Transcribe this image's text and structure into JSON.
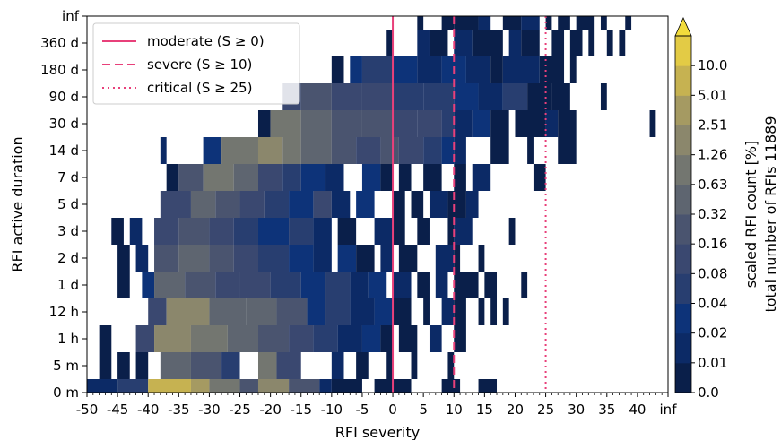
{
  "chart_data": {
    "type": "heatmap",
    "xlabel": "RFI severity",
    "ylabel": "RFI active duration",
    "x_ticks": [
      "-50",
      "-45",
      "-40",
      "-35",
      "-30",
      "-25",
      "-20",
      "-15",
      "-10",
      "-5",
      "0",
      "5",
      "10",
      "15",
      "20",
      "25",
      "30",
      "35",
      "40",
      "inf"
    ],
    "y_ticks": [
      "0 m",
      "5 m",
      "1 h",
      "12 h",
      "1 d",
      "2 d",
      "3 d",
      "5 d",
      "7 d",
      "14 d",
      "30 d",
      "90 d",
      "180 d",
      "360 d",
      "inf"
    ],
    "x_range": [
      -50,
      45
    ],
    "legend": {
      "placement": "top-left",
      "entries": [
        {
          "label": "moderate (S ≥ 0)",
          "x": 0,
          "style": "solid"
        },
        {
          "label": "severe (S ≥ 10)",
          "x": 10,
          "style": "dashed"
        },
        {
          "label": "critical (S ≥ 25)",
          "x": 25,
          "style": "dotted"
        }
      ]
    },
    "line_color": "#e8407a",
    "colorbar": {
      "label_lines": [
        "scaled RFI count [%]",
        "total number of RFIs 11889"
      ],
      "ticks": [
        "0.0",
        "0.01",
        "0.02",
        "0.04",
        "0.08",
        "0.16",
        "0.32",
        "0.63",
        "1.26",
        "2.51",
        "5.01",
        "10.0"
      ],
      "colors": [
        "#0a1f4a",
        "#0c2a66",
        "#0d3379",
        "#283e70",
        "#3a4870",
        "#4a546f",
        "#5e6570",
        "#737670",
        "#8b876c",
        "#a59a62",
        "#c6b251",
        "#e3cb45"
      ],
      "extend_color": "#f2dc3c"
    },
    "rows": [
      {
        "y": "0 m",
        "cells": [
          [
            -50,
            -45,
            1
          ],
          [
            -45,
            -40,
            3
          ],
          [
            -40,
            -33,
            10
          ],
          [
            -33,
            -30,
            9
          ],
          [
            -30,
            -25,
            7
          ],
          [
            -25,
            -22,
            5
          ],
          [
            -22,
            -17,
            8
          ],
          [
            -17,
            -12,
            5
          ],
          [
            -12,
            -10,
            1
          ],
          [
            -10,
            -5,
            0
          ],
          [
            -3,
            0,
            0
          ],
          [
            0,
            3,
            0
          ],
          [
            8,
            11,
            0
          ],
          [
            14,
            17,
            0
          ]
        ]
      },
      {
        "y": "5 m",
        "cells": [
          [
            -48,
            -46,
            0
          ],
          [
            -45,
            -43,
            0
          ],
          [
            -42,
            -40,
            0
          ],
          [
            -38,
            -33,
            6
          ],
          [
            -33,
            -28,
            5
          ],
          [
            -28,
            -25,
            3
          ],
          [
            -22,
            -19,
            7
          ],
          [
            -19,
            -15,
            4
          ],
          [
            -10,
            -8,
            1
          ],
          [
            -6,
            -4,
            0
          ],
          [
            -1,
            0,
            0
          ],
          [
            3,
            4,
            0
          ],
          [
            9,
            10,
            0
          ]
        ]
      },
      {
        "y": "1 h",
        "cells": [
          [
            -48,
            -46,
            0
          ],
          [
            -42,
            -39,
            4
          ],
          [
            -39,
            -33,
            8
          ],
          [
            -33,
            -27,
            7
          ],
          [
            -27,
            -22,
            6
          ],
          [
            -22,
            -17,
            5
          ],
          [
            -17,
            -13,
            4
          ],
          [
            -13,
            -9,
            3
          ],
          [
            -9,
            -5,
            1
          ],
          [
            -5,
            -2,
            2
          ],
          [
            -2,
            0,
            0
          ],
          [
            1,
            4,
            0
          ],
          [
            6,
            8,
            1
          ],
          [
            10,
            12,
            0
          ]
        ]
      },
      {
        "y": "12 h",
        "cells": [
          [
            -40,
            -37,
            4
          ],
          [
            -37,
            -30,
            8
          ],
          [
            -30,
            -24,
            6
          ],
          [
            -24,
            -19,
            6
          ],
          [
            -19,
            -14,
            5
          ],
          [
            -14,
            -11,
            2
          ],
          [
            -11,
            -7,
            3
          ],
          [
            -7,
            -3,
            1
          ],
          [
            -3,
            0,
            2
          ],
          [
            0,
            3,
            0
          ],
          [
            5,
            6,
            0
          ],
          [
            8,
            10,
            1
          ],
          [
            10,
            12,
            0
          ],
          [
            14,
            15,
            0
          ],
          [
            16,
            17,
            0
          ],
          [
            18,
            19,
            0
          ]
        ]
      },
      {
        "y": "1 d",
        "cells": [
          [
            -45,
            -43,
            0
          ],
          [
            -41,
            -39,
            2
          ],
          [
            -39,
            -34,
            6
          ],
          [
            -34,
            -29,
            5
          ],
          [
            -29,
            -25,
            4
          ],
          [
            -25,
            -20,
            4
          ],
          [
            -20,
            -15,
            3
          ],
          [
            -15,
            -11,
            2
          ],
          [
            -11,
            -7,
            3
          ],
          [
            -7,
            -4,
            1
          ],
          [
            -4,
            -1,
            2
          ],
          [
            0,
            3,
            1
          ],
          [
            4,
            6,
            0
          ],
          [
            7,
            9,
            1
          ],
          [
            10,
            14,
            0
          ],
          [
            15,
            17,
            0
          ],
          [
            21,
            22,
            0
          ]
        ]
      },
      {
        "y": "2 d",
        "cells": [
          [
            -45,
            -43,
            0
          ],
          [
            -42,
            -40,
            1
          ],
          [
            -39,
            -35,
            5
          ],
          [
            -35,
            -30,
            6
          ],
          [
            -30,
            -26,
            5
          ],
          [
            -26,
            -22,
            4
          ],
          [
            -22,
            -17,
            3
          ],
          [
            -17,
            -13,
            2
          ],
          [
            -13,
            -10,
            1
          ],
          [
            -9,
            -6,
            2
          ],
          [
            -6,
            -3,
            0
          ],
          [
            -2,
            0,
            1
          ],
          [
            1,
            4,
            0
          ],
          [
            7,
            10,
            1
          ],
          [
            10,
            11,
            0
          ],
          [
            14,
            15,
            0
          ]
        ]
      },
      {
        "y": "3 d",
        "cells": [
          [
            -46,
            -44,
            0
          ],
          [
            -43,
            -41,
            1
          ],
          [
            -39,
            -35,
            4
          ],
          [
            -35,
            -30,
            5
          ],
          [
            -30,
            -26,
            4
          ],
          [
            -26,
            -22,
            3
          ],
          [
            -22,
            -17,
            2
          ],
          [
            -17,
            -13,
            3
          ],
          [
            -13,
            -10,
            1
          ],
          [
            -9,
            -6,
            0
          ],
          [
            -3,
            0,
            1
          ],
          [
            0,
            2,
            0
          ],
          [
            4,
            6,
            0
          ],
          [
            9,
            10,
            0
          ],
          [
            10,
            13,
            1
          ],
          [
            19,
            20,
            0
          ]
        ]
      },
      {
        "y": "5 d",
        "cells": [
          [
            -38,
            -33,
            4
          ],
          [
            -33,
            -29,
            6
          ],
          [
            -29,
            -25,
            5
          ],
          [
            -25,
            -21,
            4
          ],
          [
            -21,
            -17,
            3
          ],
          [
            -17,
            -13,
            2
          ],
          [
            -13,
            -10,
            4
          ],
          [
            -10,
            -7,
            1
          ],
          [
            -6,
            -3,
            2
          ],
          [
            0,
            2,
            0
          ],
          [
            3,
            5,
            0
          ],
          [
            6,
            9,
            1
          ],
          [
            9,
            12,
            0
          ],
          [
            12,
            14,
            1
          ]
        ]
      },
      {
        "y": "7 d",
        "cells": [
          [
            -37,
            -35,
            0
          ],
          [
            -35,
            -31,
            5
          ],
          [
            -31,
            -26,
            7
          ],
          [
            -26,
            -22,
            6
          ],
          [
            -22,
            -18,
            4
          ],
          [
            -18,
            -15,
            3
          ],
          [
            -15,
            -11,
            2
          ],
          [
            -11,
            -8,
            1
          ],
          [
            -5,
            -2,
            2
          ],
          [
            -2,
            0,
            0
          ],
          [
            1,
            3,
            0
          ],
          [
            5,
            8,
            0
          ],
          [
            10,
            12,
            0
          ],
          [
            13,
            16,
            1
          ],
          [
            23,
            25,
            0
          ]
        ]
      },
      {
        "y": "14 d",
        "cells": [
          [
            -38,
            -37,
            1
          ],
          [
            -31,
            -28,
            2
          ],
          [
            -28,
            -22,
            7
          ],
          [
            -22,
            -18,
            8
          ],
          [
            -18,
            -15,
            7
          ],
          [
            -15,
            -10,
            6
          ],
          [
            -10,
            -6,
            5
          ],
          [
            -6,
            -2,
            4
          ],
          [
            -2,
            1,
            5
          ],
          [
            1,
            5,
            4
          ],
          [
            5,
            8,
            3
          ],
          [
            8,
            10,
            2
          ],
          [
            10,
            12,
            1
          ],
          [
            16,
            19,
            0
          ],
          [
            22,
            23,
            0
          ],
          [
            27,
            30,
            0
          ]
        ]
      },
      {
        "y": "30 d",
        "cells": [
          [
            -22,
            -20,
            0
          ],
          [
            -20,
            -15,
            7
          ],
          [
            -15,
            -10,
            6
          ],
          [
            -10,
            -5,
            5
          ],
          [
            -5,
            0,
            5
          ],
          [
            0,
            4,
            4
          ],
          [
            4,
            8,
            4
          ],
          [
            8,
            10,
            3
          ],
          [
            10,
            13,
            1
          ],
          [
            13,
            16,
            2
          ],
          [
            16,
            19,
            0
          ],
          [
            20,
            25,
            0
          ],
          [
            25,
            27,
            1
          ],
          [
            27,
            30,
            0
          ],
          [
            42,
            43,
            0
          ]
        ]
      },
      {
        "y": "90 d",
        "cells": [
          [
            -18,
            -15,
            4
          ],
          [
            -15,
            -10,
            5
          ],
          [
            -10,
            -5,
            4
          ],
          [
            -5,
            0,
            4
          ],
          [
            0,
            5,
            3
          ],
          [
            5,
            10,
            3
          ],
          [
            10,
            14,
            2
          ],
          [
            14,
            18,
            1
          ],
          [
            18,
            22,
            3
          ],
          [
            22,
            26,
            0
          ],
          [
            26,
            29,
            0
          ],
          [
            34,
            35,
            0
          ]
        ]
      },
      {
        "y": "180 d",
        "cells": [
          [
            -10,
            -8,
            0
          ],
          [
            -7,
            -5,
            2
          ],
          [
            -5,
            0,
            3
          ],
          [
            0,
            4,
            2
          ],
          [
            4,
            8,
            1
          ],
          [
            8,
            12,
            2
          ],
          [
            12,
            16,
            1
          ],
          [
            16,
            18,
            0
          ],
          [
            18,
            24,
            1
          ],
          [
            24,
            28,
            0
          ],
          [
            29,
            30,
            0
          ]
        ]
      },
      {
        "y": "360 d",
        "cells": [
          [
            -1,
            0,
            0
          ],
          [
            4,
            6,
            1
          ],
          [
            6,
            9,
            0
          ],
          [
            10,
            13,
            1
          ],
          [
            13,
            18,
            0
          ],
          [
            19,
            21,
            1
          ],
          [
            21,
            24,
            0
          ],
          [
            26,
            28,
            0
          ],
          [
            29,
            31,
            0
          ],
          [
            32,
            33,
            0
          ],
          [
            35,
            36,
            0
          ],
          [
            37,
            38,
            0
          ]
        ]
      },
      {
        "y": "inf",
        "cells": [
          [
            4,
            5,
            0
          ],
          [
            8,
            10,
            0
          ],
          [
            10,
            14,
            0
          ],
          [
            14,
            16,
            1
          ],
          [
            18,
            21,
            0
          ],
          [
            21,
            24,
            1
          ],
          [
            25,
            26,
            0
          ],
          [
            27,
            29,
            0
          ],
          [
            30,
            33,
            0
          ],
          [
            34,
            35,
            0
          ],
          [
            38,
            39,
            0
          ]
        ]
      }
    ]
  }
}
